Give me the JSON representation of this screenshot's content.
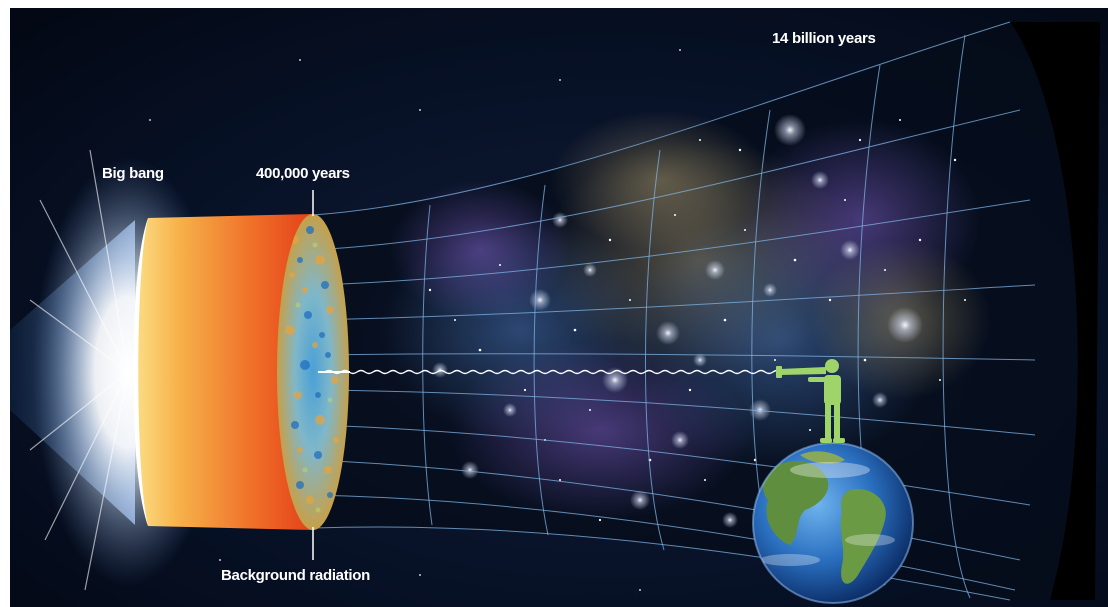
{
  "labels": {
    "big_bang": "Big bang",
    "cmb_time": "400,000 years",
    "background_radiation": "Background radiation",
    "present_time": "14 billion years"
  },
  "colors": {
    "space": "#06101f",
    "grid": "#7fb4e6",
    "fireball_inner": "#f8c85e",
    "fireball_outer": "#e84b1e",
    "observer": "#9fd46a"
  },
  "icons": {
    "observer": "person-with-telescope-icon",
    "earth": "earth-globe-icon"
  }
}
